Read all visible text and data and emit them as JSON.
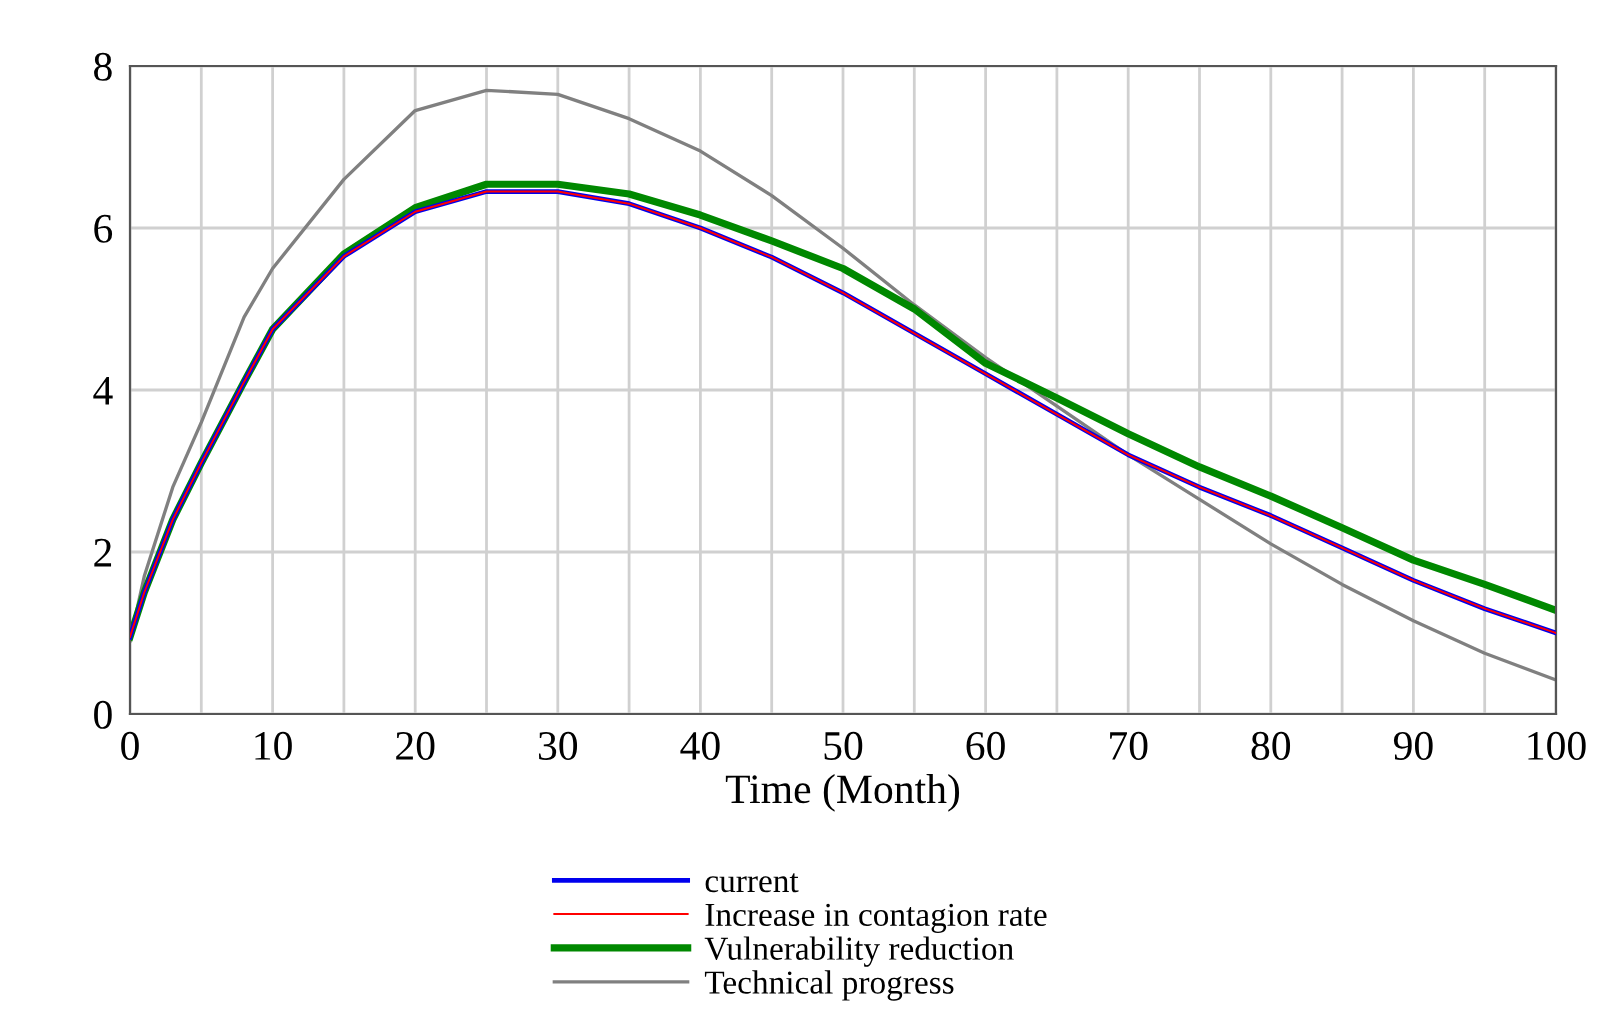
{
  "chart_data": {
    "type": "line",
    "xlabel": "Time (Month)",
    "x": [
      0,
      1,
      3,
      5,
      8,
      10,
      15,
      20,
      25,
      30,
      35,
      40,
      45,
      50,
      55,
      60,
      65,
      70,
      75,
      80,
      85,
      90,
      95,
      100
    ],
    "series": [
      {
        "name": "current",
        "color": "#0000ee",
        "values": [
          0.95,
          1.5,
          2.4,
          3.1,
          4.1,
          4.75,
          5.65,
          6.2,
          6.45,
          6.45,
          6.3,
          6.0,
          5.64,
          5.2,
          4.7,
          4.2,
          3.7,
          3.2,
          2.8,
          2.45,
          2.05,
          1.65,
          1.3,
          1.0
        ]
      },
      {
        "name": "Increase in contagion rate",
        "color": "#ff0000",
        "values": [
          0.95,
          1.5,
          2.4,
          3.1,
          4.1,
          4.75,
          5.65,
          6.2,
          6.45,
          6.45,
          6.3,
          6.0,
          5.64,
          5.2,
          4.7,
          4.2,
          3.7,
          3.2,
          2.8,
          2.45,
          2.05,
          1.65,
          1.3,
          1.0
        ]
      },
      {
        "name": "Vulnerability reduction",
        "color": "#008800",
        "values": [
          0.95,
          1.5,
          2.4,
          3.1,
          4.1,
          4.75,
          5.68,
          6.25,
          6.54,
          6.54,
          6.42,
          6.16,
          5.84,
          5.5,
          5.0,
          4.33,
          3.9,
          3.46,
          3.05,
          2.69,
          2.3,
          1.9,
          1.6,
          1.28
        ]
      },
      {
        "name": "Technical progress",
        "color": "#808080",
        "values": [
          0.9,
          1.7,
          2.8,
          3.6,
          4.9,
          5.5,
          6.6,
          7.45,
          7.7,
          7.65,
          7.35,
          6.95,
          6.4,
          5.75,
          5.05,
          4.4,
          3.8,
          3.2,
          2.65,
          2.1,
          1.6,
          1.15,
          0.75,
          0.42
        ]
      }
    ],
    "xlim": [
      0,
      100
    ],
    "xticks": [
      0,
      10,
      20,
      30,
      40,
      50,
      60,
      70,
      80,
      90,
      100
    ],
    "ylim": [
      0,
      8
    ],
    "yticks": [
      0,
      2,
      4,
      6,
      8
    ],
    "grid": true,
    "legend": "bottom"
  }
}
